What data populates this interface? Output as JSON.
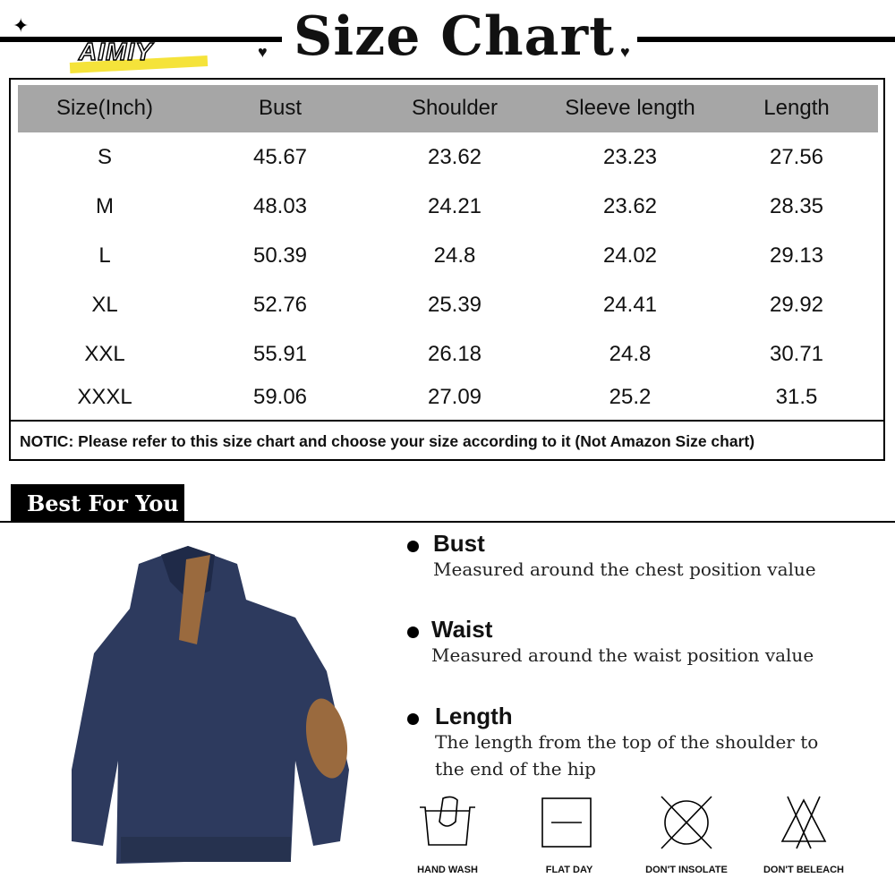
{
  "header": {
    "title": "Size Chart",
    "brand": "AIMIY"
  },
  "table": {
    "columns": [
      "Size(Inch)",
      "Bust",
      "Shoulder",
      "Sleeve length",
      "Length"
    ],
    "rows": [
      [
        "S",
        "45.67",
        "23.62",
        "23.23",
        "27.56"
      ],
      [
        "M",
        "48.03",
        "24.21",
        "23.62",
        "28.35"
      ],
      [
        "L",
        "50.39",
        "24.8",
        "24.02",
        "29.13"
      ],
      [
        "XL",
        "52.76",
        "25.39",
        "24.41",
        "29.92"
      ],
      [
        "XXL",
        "55.91",
        "26.18",
        "24.8",
        "30.71"
      ],
      [
        "XXXL",
        "59.06",
        "27.09",
        "25.2",
        "31.5"
      ]
    ],
    "notice": "NOTIC: Please refer to this size chart and choose your size according to it (Not Amazon Size chart)"
  },
  "section": {
    "label": "Best For You"
  },
  "features": [
    {
      "title": "Bust",
      "desc": "Measured around the chest position value"
    },
    {
      "title": "Waist",
      "desc": "Measured around the waist position value"
    },
    {
      "title": "Length",
      "desc": "The length from the top of the shoulder to the end of the hip"
    }
  ],
  "care": [
    {
      "icon": "hand-wash-icon",
      "label": "HAND WASH"
    },
    {
      "icon": "flat-dry-icon",
      "label": "FLAT DAY"
    },
    {
      "icon": "dont-insolate-icon",
      "label": "DON'T INSOLATE"
    },
    {
      "icon": "dont-bleach-icon",
      "label": "DON'T BELEACH"
    }
  ],
  "colors": {
    "header_row": "#a6a6a6",
    "sweater": "#2d3a5e",
    "patch": "#9a6a3e",
    "brand_bar": "#f5e33a"
  }
}
